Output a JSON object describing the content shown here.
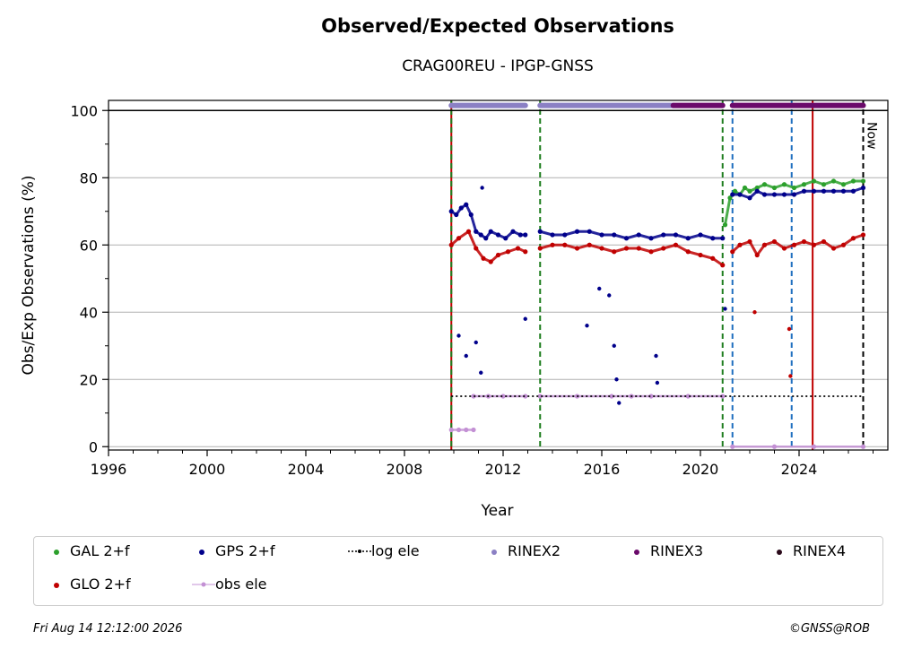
{
  "chart_data": {
    "type": "scatter",
    "title": "Observed/Expected Observations",
    "subtitle": "CRAG00REU - IPGP-GNSS",
    "xlabel": "Year",
    "ylabel": "Obs/Exp Observations (%)",
    "xlim": [
      1996,
      2027.6
    ],
    "ylim": [
      -1,
      103
    ],
    "xticks": [
      1996,
      2000,
      2004,
      2008,
      2012,
      2016,
      2020,
      2024
    ],
    "yticks": [
      0,
      20,
      40,
      60,
      80,
      100
    ],
    "grid": "horizontal",
    "now_label": "Now",
    "now_year": 2026.6,
    "series": [
      {
        "name": "GAL 2+f",
        "color": "#2ca02c",
        "segments": [
          {
            "x": [
              2021.0,
              2021.2,
              2021.4,
              2021.6,
              2021.8,
              2022.0,
              2022.3,
              2022.6,
              2023.0,
              2023.4,
              2023.8,
              2024.2,
              2024.6,
              2025.0,
              2025.4,
              2025.8,
              2026.2,
              2026.6
            ],
            "y": [
              66,
              74,
              76,
              75,
              77,
              76,
              77,
              78,
              77,
              78,
              77,
              78,
              79,
              78,
              79,
              78,
              79,
              79
            ]
          }
        ]
      },
      {
        "name": "GPS 2+f",
        "color": "#00008b",
        "segments": [
          {
            "x": [
              2009.9,
              2010.1,
              2010.3,
              2010.5,
              2010.7,
              2010.9,
              2011.1,
              2011.3,
              2011.5,
              2011.8,
              2012.1,
              2012.4,
              2012.7,
              2012.9
            ],
            "y": [
              70,
              69,
              71,
              72,
              69,
              64,
              63,
              62,
              64,
              63,
              62,
              64,
              63,
              63
            ]
          },
          {
            "x": [
              2013.5,
              2014.0,
              2014.5,
              2015.0,
              2015.5,
              2016.0,
              2016.5,
              2017.0,
              2017.5,
              2018.0,
              2018.5,
              2019.0,
              2019.5,
              2020.0,
              2020.5,
              2020.9
            ],
            "y": [
              64,
              63,
              63,
              64,
              64,
              63,
              63,
              62,
              63,
              62,
              63,
              63,
              62,
              63,
              62,
              62
            ]
          },
          {
            "x": [
              2021.3,
              2021.6,
              2022.0,
              2022.3,
              2022.6,
              2023.0,
              2023.4,
              2023.8,
              2024.2,
              2024.6,
              2025.0,
              2025.4,
              2025.8,
              2026.2,
              2026.6
            ],
            "y": [
              75,
              75,
              74,
              76,
              75,
              75,
              75,
              75,
              76,
              76,
              76,
              76,
              76,
              76,
              77
            ]
          }
        ]
      },
      {
        "name": "GLO 2+f",
        "color": "#c00000",
        "segments": [
          {
            "x": [
              2009.9,
              2010.2,
              2010.6,
              2010.9,
              2011.2,
              2011.5,
              2011.8,
              2012.2,
              2012.6,
              2012.9
            ],
            "y": [
              60,
              62,
              64,
              59,
              56,
              55,
              57,
              58,
              59,
              58
            ]
          },
          {
            "x": [
              2013.5,
              2014.0,
              2014.5,
              2015.0,
              2015.5,
              2016.0,
              2016.5,
              2017.0,
              2017.5,
              2018.0,
              2018.5,
              2019.0,
              2019.5,
              2020.0,
              2020.5,
              2020.9
            ],
            "y": [
              59,
              60,
              60,
              59,
              60,
              59,
              58,
              59,
              59,
              58,
              59,
              60,
              58,
              57,
              56,
              54
            ]
          },
          {
            "x": [
              2021.3,
              2021.6,
              2022.0,
              2022.3,
              2022.6,
              2023.0,
              2023.4,
              2023.8,
              2024.2,
              2024.6,
              2025.0,
              2025.4,
              2025.8,
              2026.2,
              2026.6
            ],
            "y": [
              58,
              60,
              61,
              57,
              60,
              61,
              59,
              60,
              61,
              60,
              61,
              59,
              60,
              62,
              63
            ]
          }
        ]
      },
      {
        "name": "obs ele",
        "color": "#c390d4",
        "segments": [
          {
            "x": [
              2009.9,
              2010.2,
              2010.5,
              2010.8
            ],
            "y": [
              5,
              5,
              5,
              5
            ]
          },
          {
            "x": [
              2010.8,
              2011.4,
              2012.0,
              2012.9
            ],
            "y": [
              15,
              15,
              15,
              15
            ]
          },
          {
            "x": [
              2013.5,
              2015.0,
              2016.4,
              2017.2,
              2018.0,
              2019.5,
              2020.9
            ],
            "y": [
              15,
              15,
              15,
              15,
              15,
              15,
              15
            ]
          },
          {
            "x": [
              2021.3,
              2023.0,
              2024.6,
              2026.6
            ],
            "y": [
              0,
              0,
              0,
              0
            ]
          }
        ]
      },
      {
        "name": "log ele",
        "color": "#000000",
        "segments": [
          {
            "x": [
              2009.9,
              2026.6
            ],
            "y": [
              15,
              15
            ]
          }
        ]
      }
    ],
    "dips": [
      {
        "x": 2010.2,
        "y": 33
      },
      {
        "x": 2010.5,
        "y": 27
      },
      {
        "x": 2010.9,
        "y": 31
      },
      {
        "x": 2011.1,
        "y": 22
      },
      {
        "x": 2011.15,
        "y": 77
      },
      {
        "x": 2012.9,
        "y": 38
      },
      {
        "x": 2015.4,
        "y": 36
      },
      {
        "x": 2015.9,
        "y": 47
      },
      {
        "x": 2016.3,
        "y": 45
      },
      {
        "x": 2016.5,
        "y": 30
      },
      {
        "x": 2016.6,
        "y": 20
      },
      {
        "x": 2016.7,
        "y": 13
      },
      {
        "x": 2018.2,
        "y": 27
      },
      {
        "x": 2018.25,
        "y": 19
      },
      {
        "x": 2021.0,
        "y": 41
      },
      {
        "x": 2022.2,
        "y": 40
      },
      {
        "x": 2023.6,
        "y": 35
      },
      {
        "x": 2023.65,
        "y": 21
      }
    ],
    "rinex_bars": [
      {
        "format": "RINEX2",
        "color": "#8b80c4",
        "from": 2009.9,
        "to": 2012.9
      },
      {
        "format": "RINEX2",
        "color": "#8b80c4",
        "from": 2013.5,
        "to": 2018.9
      },
      {
        "format": "RINEX3",
        "color": "#6a0a6a",
        "from": 2018.9,
        "to": 2020.9
      },
      {
        "format": "RINEX3",
        "color": "#6a0a6a",
        "from": 2021.3,
        "to": 2026.6
      }
    ],
    "events": [
      {
        "x": 2009.9,
        "color": "#c00000",
        "style": "solid"
      },
      {
        "x": 2009.9,
        "color": "#1e7d1e",
        "style": "dashed"
      },
      {
        "x": 2013.5,
        "color": "#1e7d1e",
        "style": "dashed"
      },
      {
        "x": 2020.9,
        "color": "#1e7d1e",
        "style": "dashed"
      },
      {
        "x": 2021.3,
        "color": "#1f6fbf",
        "style": "dashed"
      },
      {
        "x": 2023.7,
        "color": "#1f6fbf",
        "style": "dashed"
      },
      {
        "x": 2024.55,
        "color": "#c00000",
        "style": "solid"
      },
      {
        "x": 2026.6,
        "color": "#000000",
        "style": "dashed"
      }
    ]
  },
  "legend": [
    {
      "label": "GAL 2+f",
      "color": "#2ca02c",
      "kind": "dot"
    },
    {
      "label": "GPS 2+f",
      "color": "#00008b",
      "kind": "dot"
    },
    {
      "label": "log ele",
      "color": "#000000",
      "kind": "dotted-line"
    },
    {
      "label": "RINEX2",
      "color": "#8b80c4",
      "kind": "dot"
    },
    {
      "label": "RINEX3",
      "color": "#6a0a6a",
      "kind": "dot"
    },
    {
      "label": "RINEX4",
      "color": "#2a0a1a",
      "kind": "dot"
    },
    {
      "label": "GLO 2+f",
      "color": "#c00000",
      "kind": "dot"
    },
    {
      "label": "obs ele",
      "color": "#c390d4",
      "kind": "line-dot"
    }
  ],
  "footer": {
    "timestamp": "Fri Aug 14 12:12:00 2026",
    "credit": "©GNSS@ROB"
  }
}
